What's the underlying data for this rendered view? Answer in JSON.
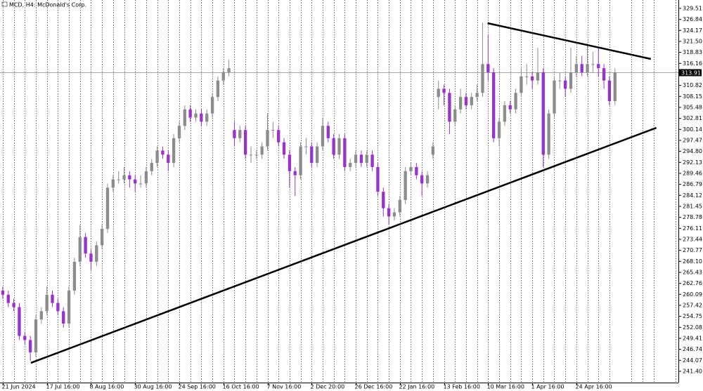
{
  "chart_data": {
    "type": "candlestick",
    "title": "MCD, H4:  McDonald's Corp.",
    "up_color": "#8c8c8c",
    "down_color": "#9932cc",
    "grid": true,
    "ylim": [
      238.67,
      331.55
    ],
    "yticks": [
      329.51,
      326.84,
      324.17,
      {
        "value": 321.5,
        "label": "321.50"
      },
      318.83,
      316.16,
      310.82,
      308.15,
      305.48,
      302.81,
      300.14,
      297.47,
      {
        "value": 294.8,
        "label": "294.80"
      },
      292.13,
      289.46,
      286.79,
      284.12,
      281.45,
      278.78,
      276.11,
      273.44,
      270.77,
      {
        "value": 268.1,
        "label": "268.10"
      },
      265.43,
      262.76,
      260.09,
      257.42,
      254.75,
      252.08,
      249.41,
      246.74,
      244.07,
      {
        "value": 241.4,
        "label": "241.40"
      }
    ],
    "xlim": [
      -0.5,
      122.5
    ],
    "xticks": [
      {
        "value": 0,
        "label": "21 Jun 2024"
      },
      {
        "value": 8,
        "label": "17 Jul 16:00"
      },
      {
        "value": 16,
        "label": "8 Aug 16:00"
      },
      {
        "value": 24,
        "label": "30 Aug 16:00"
      },
      {
        "value": 32,
        "label": "24 Sep 16:00"
      },
      {
        "value": 40,
        "label": "16 Oct 16:00"
      },
      {
        "value": 48,
        "label": "7 Nov 16:00"
      },
      {
        "value": 56,
        "label": "2 Dec 20:00"
      },
      {
        "value": 64,
        "label": "26 Dec 16:00"
      },
      {
        "value": 72,
        "label": "22 Jan 16:00"
      },
      {
        "value": 80,
        "label": "13 Feb 16:00"
      },
      {
        "value": 88,
        "label": "10 Mar 16:00"
      },
      {
        "value": 96,
        "label": "1 Apr 16:00"
      },
      {
        "value": 104,
        "label": "24 Apr 16:00"
      }
    ],
    "current_price": 313.91,
    "open": [
      261,
      260,
      258,
      257,
      250,
      249,
      246,
      254,
      256,
      260,
      258,
      256,
      253,
      261,
      268,
      274,
      270,
      268,
      272,
      276,
      286,
      288,
      288,
      289,
      288,
      287,
      287,
      290,
      292,
      295,
      294,
      292,
      298,
      301,
      305,
      303,
      304,
      302,
      304,
      308,
      312,
      314,
      300,
      298,
      300,
      294,
      294,
      294,
      296,
      300,
      300,
      297,
      294,
      290,
      289,
      296,
      296,
      292,
      296,
      301,
      298,
      294,
      298,
      291,
      292,
      294,
      292,
      294,
      291,
      285,
      281,
      279,
      280,
      283,
      290,
      291,
      289,
      287,
      294,
      308,
      310,
      309,
      302,
      305,
      308,
      306,
      308,
      309,
      316,
      314,
      298,
      302,
      306,
      305,
      309,
      313,
      313,
      312,
      314,
      294,
      304,
      312,
      312,
      310,
      314,
      316,
      314,
      316,
      316,
      315,
      312,
      307
    ],
    "high": [
      262,
      261,
      259,
      258,
      251,
      250,
      255,
      257,
      262,
      261,
      259,
      257,
      262,
      269,
      277,
      275,
      271,
      273,
      277,
      287,
      289,
      290,
      291,
      290,
      289,
      289,
      291,
      293,
      296,
      296,
      295,
      299,
      302,
      306,
      306,
      305,
      305,
      305,
      309,
      313,
      315,
      317,
      302,
      301,
      301,
      296,
      295,
      297,
      304,
      302,
      301,
      298,
      295,
      291,
      297,
      298,
      297,
      297,
      303,
      302,
      299,
      299,
      299,
      293,
      295,
      295,
      295,
      295,
      292,
      286,
      282,
      281,
      284,
      291,
      292,
      292,
      290,
      290,
      297,
      312,
      311,
      310,
      306,
      310,
      309,
      309,
      311,
      326,
      323,
      315,
      303,
      307,
      307,
      310,
      315,
      316,
      314,
      320,
      315,
      305,
      313,
      314,
      313,
      320,
      318,
      318,
      321,
      319,
      320,
      316,
      313,
      315
    ],
    "low": [
      259,
      257,
      256,
      249,
      248,
      244,
      245,
      253,
      255,
      257,
      255,
      252,
      252,
      260,
      267,
      269,
      266,
      267,
      271,
      275,
      285,
      287,
      287,
      286,
      285,
      286,
      286,
      289,
      291,
      293,
      290,
      291,
      297,
      300,
      302,
      302,
      301,
      301,
      303,
      307,
      311,
      313,
      296,
      297,
      293,
      292,
      293,
      293,
      295,
      298,
      296,
      293,
      286,
      284,
      288,
      294,
      291,
      291,
      295,
      297,
      293,
      293,
      290,
      290,
      291,
      291,
      291,
      290,
      284,
      279,
      277,
      278,
      279,
      282,
      289,
      288,
      284,
      286,
      293,
      305,
      306,
      299,
      301,
      304,
      305,
      305,
      307,
      308,
      312,
      297,
      296,
      301,
      304,
      304,
      308,
      311,
      310,
      311,
      291,
      293,
      303,
      310,
      308,
      309,
      313,
      313,
      313,
      314,
      313,
      310,
      306,
      306
    ],
    "close": [
      260,
      258,
      257,
      250,
      249,
      246,
      254,
      256,
      260,
      258,
      256,
      253,
      261,
      268,
      274,
      270,
      268,
      272,
      276,
      286,
      288,
      288,
      289,
      288,
      287,
      287,
      290,
      292,
      295,
      294,
      292,
      298,
      301,
      305,
      303,
      304,
      302,
      304,
      308,
      312,
      314,
      315,
      298,
      300,
      294,
      294,
      294,
      296,
      300,
      300,
      297,
      294,
      290,
      289,
      296,
      296,
      292,
      296,
      301,
      298,
      294,
      298,
      291,
      292,
      294,
      292,
      294,
      291,
      285,
      281,
      279,
      280,
      283,
      290,
      291,
      289,
      287,
      289,
      296,
      310,
      309,
      302,
      305,
      308,
      306,
      308,
      309,
      316,
      314,
      298,
      302,
      306,
      305,
      309,
      313,
      313,
      312,
      314,
      294,
      304,
      312,
      312,
      310,
      314,
      316,
      314,
      316,
      316,
      315,
      312,
      307,
      314
    ],
    "trendlines": [
      {
        "x": [
          5.1,
          118.5
        ],
        "y": [
          243.45,
          300.53
        ]
      },
      {
        "x": [
          87.9,
          117.5
        ],
        "y": [
          325.93,
          317.24
        ]
      }
    ]
  }
}
